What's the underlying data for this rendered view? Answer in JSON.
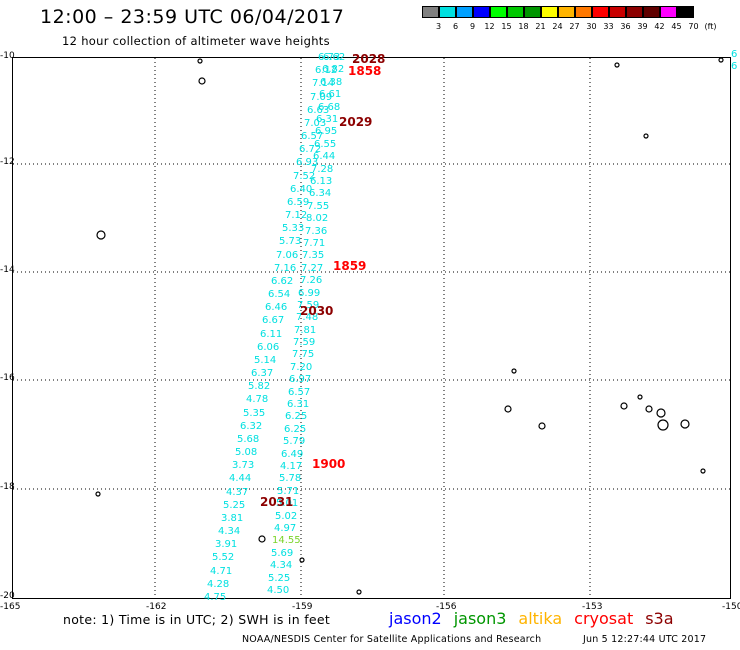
{
  "header": {
    "title": "12:00 – 23:59 UTC 06/04/2017",
    "subtitle": "12 hour collection of altimeter wave heights"
  },
  "colorbar": {
    "colors": [
      "#808080",
      "#00e0e0",
      "#00a0ff",
      "#0000ff",
      "#00ff00",
      "#00c800",
      "#009600",
      "#ffff00",
      "#ffb400",
      "#ff7800",
      "#ff0000",
      "#c80000",
      "#8c0000",
      "#600000",
      "#ff00ff",
      "#000000"
    ],
    "labels": [
      "3",
      "6",
      "9",
      "12",
      "15",
      "18",
      "21",
      "24",
      "27",
      "30",
      "33",
      "36",
      "39",
      "42",
      "45",
      "70",
      "(ft)"
    ]
  },
  "map": {
    "lat_labels": [
      "-10",
      "-12",
      "-14",
      "-16",
      "-18",
      "-20"
    ],
    "lon_labels": [
      "-165",
      "-162",
      "-159",
      "-156",
      "-153",
      "-150"
    ]
  },
  "tracks": {
    "left_color": "#00e0e0",
    "left": [
      "6.73",
      "6.12",
      "7.14",
      "7.09",
      "6.63",
      "7.03",
      "6.57",
      "6.72",
      "6.93",
      "7.52",
      "6.40",
      "6.59",
      "7.12",
      "5.33",
      "5.73",
      "7.06",
      "7.16",
      "6.62",
      "6.54",
      "6.46",
      "6.67",
      "6.11",
      "6.06",
      "5.14",
      "6.37",
      "5.82",
      "4.78",
      "5.35",
      "6.32",
      "5.68",
      "5.08",
      "3.73",
      "4.44",
      "4.37",
      "5.25",
      "3.81",
      "4.34",
      "3.91",
      "5.52",
      "4.71",
      "4.28",
      "4.75"
    ],
    "right": [
      "6.62",
      "6.82",
      "6.38",
      "6.61",
      "6.68",
      "6.31",
      "6.95",
      "6.55",
      "6.44",
      "7.28",
      "6.13",
      "6.34",
      "7.55",
      "8.02",
      "7.36",
      "7.71",
      "7.35",
      "7.27",
      "7.26",
      "6.99",
      "7.59",
      "7.48",
      "7.81",
      "7.59",
      "7.75",
      "7.20",
      "6.97",
      "6.57",
      "6.31",
      "6.25",
      "6.25",
      "5.79",
      "6.49",
      "4.17",
      "5.78",
      "5.71",
      "5.01",
      "5.02",
      "4.97",
      "14.55",
      "5.69",
      "4.34",
      "5.25",
      "4.50"
    ],
    "right_edge": [
      "6",
      "6"
    ]
  },
  "times": [
    {
      "label": "2028",
      "color": "#8c0000"
    },
    {
      "label": "1858",
      "color": "#ff0000"
    },
    {
      "label": "2029",
      "color": "#8c0000"
    },
    {
      "label": "1859",
      "color": "#ff0000"
    },
    {
      "label": "2030",
      "color": "#8c0000"
    },
    {
      "label": "1900",
      "color": "#ff0000"
    },
    {
      "label": "2031",
      "color": "#8c0000"
    }
  ],
  "footer": {
    "note": "note: 1) Time is in UTC; 2) SWH is in feet",
    "legend": [
      {
        "label": "jason2",
        "color": "#0000ff"
      },
      {
        "label": "jason3",
        "color": "#009600"
      },
      {
        "label": "altika",
        "color": "#ffb400"
      },
      {
        "label": "cryosat",
        "color": "#ff0000"
      },
      {
        "label": "s3a",
        "color": "#8c0000"
      }
    ],
    "credit": "NOAA/NESDIS Center for Satellite Applications and Research",
    "timestamp": "Jun  5 12:27:44 UTC 2017"
  }
}
